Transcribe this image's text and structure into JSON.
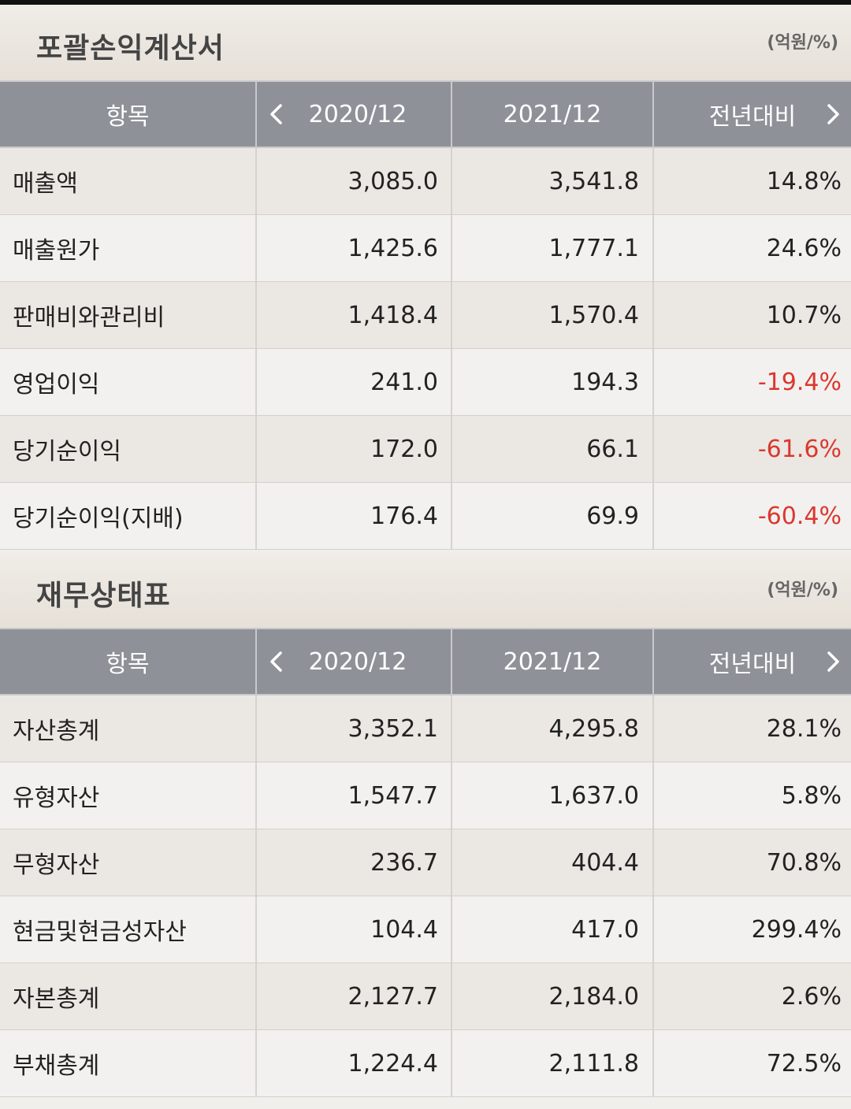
{
  "sections": [
    {
      "title": "포괄손익계산서",
      "unit": "(억원/%)",
      "headers": [
        "항목",
        "2020/12",
        "2021/12",
        "전년대비"
      ],
      "rows": [
        {
          "item": "매출액",
          "y2020": "3,085.0",
          "y2021": "3,541.8",
          "yoy": "14.8%",
          "negative": false
        },
        {
          "item": "매출원가",
          "y2020": "1,425.6",
          "y2021": "1,777.1",
          "yoy": "24.6%",
          "negative": false
        },
        {
          "item": "판매비와관리비",
          "y2020": "1,418.4",
          "y2021": "1,570.4",
          "yoy": "10.7%",
          "negative": false
        },
        {
          "item": "영업이익",
          "y2020": "241.0",
          "y2021": "194.3",
          "yoy": "-19.4%",
          "negative": true
        },
        {
          "item": "당기순이익",
          "y2020": "172.0",
          "y2021": "66.1",
          "yoy": "-61.6%",
          "negative": true
        },
        {
          "item": "당기순이익(지배)",
          "y2020": "176.4",
          "y2021": "69.9",
          "yoy": "-60.4%",
          "negative": true
        }
      ]
    },
    {
      "title": "재무상태표",
      "unit": "(억원/%)",
      "headers": [
        "항목",
        "2020/12",
        "2021/12",
        "전년대비"
      ],
      "rows": [
        {
          "item": "자산총계",
          "y2020": "3,352.1",
          "y2021": "4,295.8",
          "yoy": "28.1%",
          "negative": false
        },
        {
          "item": "유형자산",
          "y2020": "1,547.7",
          "y2021": "1,637.0",
          "yoy": "5.8%",
          "negative": false
        },
        {
          "item": "무형자산",
          "y2020": "236.7",
          "y2021": "404.4",
          "yoy": "70.8%",
          "negative": false
        },
        {
          "item": "현금및현금성자산",
          "y2020": "104.4",
          "y2021": "417.0",
          "yoy": "299.4%",
          "negative": false
        },
        {
          "item": "자본총계",
          "y2020": "2,127.7",
          "y2021": "2,184.0",
          "yoy": "2.6%",
          "negative": false
        },
        {
          "item": "부채총계",
          "y2020": "1,224.4",
          "y2021": "2,111.8",
          "yoy": "72.5%",
          "negative": false
        }
      ]
    }
  ],
  "colors": {
    "negative": "#d9382f",
    "header_bg": "#8e9198"
  },
  "icons": {
    "prev": "chevron-left-icon",
    "next": "chevron-right-icon"
  }
}
